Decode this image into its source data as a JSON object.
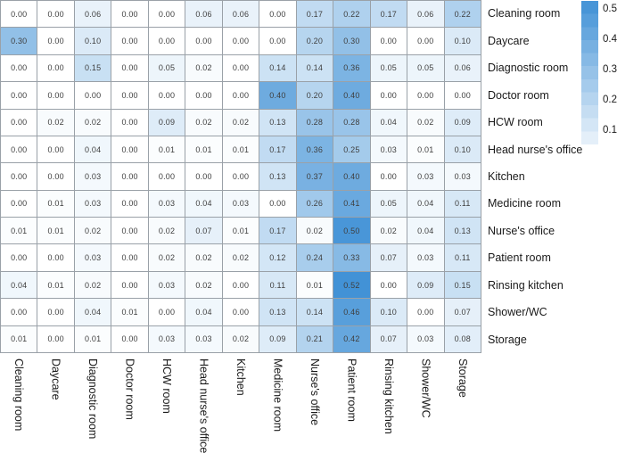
{
  "figure": {
    "background": "#ffffff",
    "grid_line_color": "#9aa1a8",
    "cell_text_color": "#3f3f3f",
    "label_color": "#1a1a1a"
  },
  "chart_data": {
    "type": "heatmap",
    "title": "",
    "xlabel": "",
    "ylabel": "",
    "rows": [
      "Cleaning room",
      "Daycare",
      "Diagnostic room",
      "Doctor room",
      "HCW room",
      "Head nurse's office",
      "Kitchen",
      "Medicine room",
      "Nurse's office",
      "Patient room",
      "Rinsing kitchen",
      "Shower/WC",
      "Storage"
    ],
    "columns": [
      "Cleaning room",
      "Daycare",
      "Diagnostic room",
      "Doctor room",
      "HCW room",
      "Head nurse's office",
      "Kitchen",
      "Medicine room",
      "Nurse's office",
      "Patient room",
      "Rinsing kitchen",
      "Shower/WC",
      "Storage"
    ],
    "values": [
      [
        0.0,
        0.0,
        0.06,
        0.0,
        0.0,
        0.06,
        0.06,
        0.0,
        0.17,
        0.22,
        0.17,
        0.06,
        0.22
      ],
      [
        0.3,
        0.0,
        0.1,
        0.0,
        0.0,
        0.0,
        0.0,
        0.0,
        0.2,
        0.3,
        0.0,
        0.0,
        0.1
      ],
      [
        0.0,
        0.0,
        0.15,
        0.0,
        0.05,
        0.02,
        0.0,
        0.14,
        0.14,
        0.36,
        0.05,
        0.05,
        0.06
      ],
      [
        0.0,
        0.0,
        0.0,
        0.0,
        0.0,
        0.0,
        0.0,
        0.4,
        0.2,
        0.4,
        0.0,
        0.0,
        0.0
      ],
      [
        0.0,
        0.02,
        0.02,
        0.0,
        0.09,
        0.02,
        0.02,
        0.13,
        0.28,
        0.28,
        0.04,
        0.02,
        0.09
      ],
      [
        0.0,
        0.0,
        0.04,
        0.0,
        0.01,
        0.01,
        0.01,
        0.17,
        0.36,
        0.25,
        0.03,
        0.01,
        0.1
      ],
      [
        0.0,
        0.0,
        0.03,
        0.0,
        0.0,
        0.0,
        0.0,
        0.13,
        0.37,
        0.4,
        0.0,
        0.03,
        0.03
      ],
      [
        0.0,
        0.01,
        0.03,
        0.0,
        0.03,
        0.04,
        0.03,
        0.0,
        0.26,
        0.41,
        0.05,
        0.04,
        0.11
      ],
      [
        0.01,
        0.01,
        0.02,
        0.0,
        0.02,
        0.07,
        0.01,
        0.17,
        0.02,
        0.5,
        0.02,
        0.04,
        0.13
      ],
      [
        0.0,
        0.0,
        0.03,
        0.0,
        0.02,
        0.02,
        0.02,
        0.12,
        0.24,
        0.33,
        0.07,
        0.03,
        0.11
      ],
      [
        0.04,
        0.01,
        0.02,
        0.0,
        0.03,
        0.02,
        0.0,
        0.11,
        0.01,
        0.52,
        0.0,
        0.09,
        0.15
      ],
      [
        0.0,
        0.0,
        0.04,
        0.01,
        0.0,
        0.04,
        0.0,
        0.13,
        0.14,
        0.46,
        0.1,
        0.0,
        0.07
      ],
      [
        0.01,
        0.0,
        0.01,
        0.0,
        0.03,
        0.03,
        0.02,
        0.09,
        0.21,
        0.42,
        0.07,
        0.03,
        0.08
      ]
    ],
    "value_decimals": 2,
    "colormap": {
      "min_color": "#ffffff",
      "max_color": "#4292d6",
      "vmin": 0.0,
      "vmax": 0.52
    },
    "colorbar": {
      "tick_labels": [
        "0.5",
        "0.4",
        "0.3",
        "0.2",
        "0.1"
      ],
      "tick_values": [
        0.5,
        0.4,
        0.3,
        0.2,
        0.1
      ],
      "top_value": 0.526,
      "bottom_value": 0.053,
      "bands": 11,
      "position": "right"
    },
    "legend": "none",
    "grid": "cell-borders"
  }
}
